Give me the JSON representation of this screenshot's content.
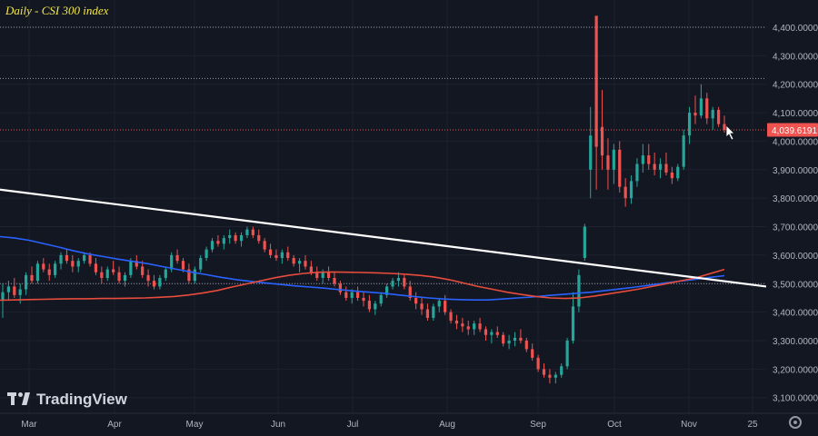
{
  "title": "Daily - CSI 300 index",
  "brand": "TradingView",
  "current_price_label": "4,039.6191",
  "colors": {
    "background": "#131722",
    "up": "#26a69a",
    "down": "#ef5350",
    "ma_fast": "#e74c3c",
    "ma_slow": "#2962ff",
    "trendline": "#ffffff",
    "title": "#f3e84a",
    "price_tag": "#ef5350"
  },
  "chart_data": {
    "type": "candlestick",
    "title": "Daily - CSI 300 index",
    "x_labels": [
      "Mar",
      "Apr",
      "May",
      "Jun",
      "Jul",
      "Aug",
      "Sep",
      "Oct",
      "Nov",
      "25"
    ],
    "y_ticks": [
      3100,
      3200,
      3300,
      3400,
      3500,
      3600,
      3700,
      3800,
      3900,
      4000,
      4100,
      4200,
      4300,
      4400
    ],
    "y_tick_labels": [
      "3,100.0000",
      "3,200.0000",
      "3,300.0000",
      "3,400.0000",
      "3,500.0000",
      "3,600.0000",
      "3,700.0000",
      "3,800.0000",
      "3,900.0000",
      "4,000.0000",
      "4,100.0000",
      "4,200.0000",
      "4,300.0000",
      "4,400.0000"
    ],
    "ylim": [
      3045,
      4470
    ],
    "last_price": 4039.6191,
    "horizontal_levels": [
      4400,
      4220,
      4039.6191,
      3500
    ],
    "candles": [
      [
        3440,
        3500,
        3380,
        3470
      ],
      [
        3470,
        3510,
        3440,
        3490
      ],
      [
        3490,
        3520,
        3450,
        3460
      ],
      [
        3460,
        3500,
        3430,
        3480
      ],
      [
        3480,
        3540,
        3460,
        3530
      ],
      [
        3530,
        3560,
        3500,
        3510
      ],
      [
        3510,
        3580,
        3500,
        3570
      ],
      [
        3570,
        3590,
        3540,
        3550
      ],
      [
        3550,
        3570,
        3510,
        3530
      ],
      [
        3530,
        3580,
        3520,
        3570
      ],
      [
        3570,
        3610,
        3550,
        3600
      ],
      [
        3600,
        3620,
        3570,
        3580
      ],
      [
        3580,
        3600,
        3540,
        3560
      ],
      [
        3560,
        3590,
        3540,
        3580
      ],
      [
        3580,
        3610,
        3570,
        3600
      ],
      [
        3600,
        3610,
        3560,
        3570
      ],
      [
        3570,
        3590,
        3530,
        3540
      ],
      [
        3540,
        3560,
        3500,
        3520
      ],
      [
        3520,
        3560,
        3510,
        3550
      ],
      [
        3550,
        3580,
        3530,
        3540
      ],
      [
        3540,
        3560,
        3500,
        3510
      ],
      [
        3510,
        3540,
        3490,
        3530
      ],
      [
        3530,
        3590,
        3520,
        3580
      ],
      [
        3580,
        3600,
        3550,
        3560
      ],
      [
        3560,
        3580,
        3520,
        3530
      ],
      [
        3530,
        3550,
        3490,
        3510
      ],
      [
        3510,
        3530,
        3480,
        3490
      ],
      [
        3490,
        3530,
        3480,
        3520
      ],
      [
        3520,
        3560,
        3510,
        3550
      ],
      [
        3550,
        3610,
        3540,
        3600
      ],
      [
        3600,
        3620,
        3570,
        3580
      ],
      [
        3580,
        3590,
        3540,
        3550
      ],
      [
        3550,
        3570,
        3500,
        3510
      ],
      [
        3510,
        3560,
        3500,
        3550
      ],
      [
        3550,
        3600,
        3540,
        3590
      ],
      [
        3590,
        3630,
        3580,
        3620
      ],
      [
        3620,
        3660,
        3610,
        3650
      ],
      [
        3650,
        3670,
        3630,
        3640
      ],
      [
        3640,
        3670,
        3620,
        3660
      ],
      [
        3660,
        3690,
        3640,
        3670
      ],
      [
        3670,
        3680,
        3640,
        3650
      ],
      [
        3650,
        3680,
        3630,
        3670
      ],
      [
        3670,
        3700,
        3660,
        3690
      ],
      [
        3690,
        3700,
        3660,
        3670
      ],
      [
        3670,
        3690,
        3640,
        3650
      ],
      [
        3650,
        3660,
        3610,
        3620
      ],
      [
        3620,
        3640,
        3590,
        3600
      ],
      [
        3600,
        3620,
        3580,
        3590
      ],
      [
        3590,
        3620,
        3570,
        3610
      ],
      [
        3610,
        3630,
        3580,
        3590
      ],
      [
        3590,
        3600,
        3560,
        3570
      ],
      [
        3570,
        3590,
        3540,
        3580
      ],
      [
        3580,
        3600,
        3550,
        3560
      ],
      [
        3560,
        3580,
        3530,
        3540
      ],
      [
        3540,
        3560,
        3510,
        3520
      ],
      [
        3520,
        3550,
        3500,
        3540
      ],
      [
        3540,
        3560,
        3510,
        3520
      ],
      [
        3520,
        3540,
        3490,
        3500
      ],
      [
        3500,
        3510,
        3460,
        3470
      ],
      [
        3470,
        3490,
        3440,
        3450
      ],
      [
        3450,
        3480,
        3430,
        3470
      ],
      [
        3470,
        3490,
        3440,
        3450
      ],
      [
        3450,
        3470,
        3420,
        3440
      ],
      [
        3440,
        3460,
        3400,
        3410
      ],
      [
        3410,
        3440,
        3390,
        3430
      ],
      [
        3430,
        3470,
        3420,
        3460
      ],
      [
        3460,
        3500,
        3450,
        3490
      ],
      [
        3490,
        3520,
        3480,
        3510
      ],
      [
        3510,
        3540,
        3490,
        3520
      ],
      [
        3520,
        3530,
        3480,
        3490
      ],
      [
        3490,
        3510,
        3440,
        3450
      ],
      [
        3450,
        3470,
        3410,
        3430
      ],
      [
        3430,
        3450,
        3390,
        3410
      ],
      [
        3410,
        3430,
        3370,
        3380
      ],
      [
        3380,
        3430,
        3370,
        3420
      ],
      [
        3420,
        3450,
        3400,
        3440
      ],
      [
        3440,
        3460,
        3390,
        3400
      ],
      [
        3400,
        3410,
        3360,
        3370
      ],
      [
        3370,
        3390,
        3340,
        3360
      ],
      [
        3360,
        3380,
        3330,
        3350
      ],
      [
        3350,
        3370,
        3320,
        3340
      ],
      [
        3340,
        3370,
        3320,
        3360
      ],
      [
        3360,
        3380,
        3330,
        3340
      ],
      [
        3340,
        3350,
        3300,
        3320
      ],
      [
        3320,
        3340,
        3290,
        3330
      ],
      [
        3330,
        3350,
        3310,
        3320
      ],
      [
        3320,
        3330,
        3280,
        3290
      ],
      [
        3290,
        3320,
        3270,
        3300
      ],
      [
        3300,
        3330,
        3280,
        3310
      ],
      [
        3310,
        3340,
        3290,
        3300
      ],
      [
        3300,
        3310,
        3260,
        3270
      ],
      [
        3270,
        3290,
        3230,
        3240
      ],
      [
        3240,
        3250,
        3190,
        3200
      ],
      [
        3200,
        3220,
        3170,
        3180
      ],
      [
        3180,
        3200,
        3150,
        3170
      ],
      [
        3170,
        3190,
        3150,
        3180
      ],
      [
        3180,
        3220,
        3170,
        3210
      ],
      [
        3210,
        3310,
        3200,
        3300
      ],
      [
        3300,
        3470,
        3290,
        3420
      ],
      [
        3420,
        3550,
        3400,
        3530
      ],
      [
        3590,
        3710,
        3580,
        3700
      ],
      [
        3900,
        4120,
        3800,
        4020
      ],
      [
        4440,
        4440,
        3830,
        3980
      ],
      [
        4050,
        4180,
        3900,
        3950
      ],
      [
        3950,
        4010,
        3830,
        3900
      ],
      [
        3900,
        3990,
        3850,
        3970
      ],
      [
        3970,
        4000,
        3820,
        3840
      ],
      [
        3840,
        3870,
        3770,
        3800
      ],
      [
        3800,
        3880,
        3780,
        3860
      ],
      [
        3860,
        3940,
        3840,
        3920
      ],
      [
        3920,
        3990,
        3890,
        3950
      ],
      [
        3950,
        3990,
        3900,
        3920
      ],
      [
        3920,
        3960,
        3880,
        3900
      ],
      [
        3900,
        3940,
        3870,
        3920
      ],
      [
        3920,
        3960,
        3880,
        3890
      ],
      [
        3890,
        3910,
        3850,
        3870
      ],
      [
        3870,
        3920,
        3860,
        3910
      ],
      [
        3910,
        4040,
        3900,
        4020
      ],
      [
        4020,
        4120,
        3990,
        4100
      ],
      [
        4100,
        4160,
        4060,
        4090
      ],
      [
        4090,
        4200,
        4080,
        4150
      ],
      [
        4150,
        4170,
        4060,
        4080
      ],
      [
        4080,
        4120,
        4040,
        4110
      ],
      [
        4110,
        4120,
        4050,
        4060
      ],
      [
        4060,
        4090,
        4030,
        4039.6191
      ]
    ],
    "candle_ranges": [
      {
        "from": 0,
        "to": 35,
        "label": "Mar"
      },
      {
        "from": 36,
        "to": 83,
        "label": "Apr"
      }
    ],
    "series": [
      {
        "kind": "ma_slow",
        "values": [
          3665,
          3660,
          3652,
          3640,
          3628,
          3615,
          3604,
          3595,
          3586,
          3578,
          3570,
          3560,
          3550,
          3540,
          3531,
          3522,
          3514,
          3508,
          3502,
          3497,
          3492,
          3488,
          3484,
          3479,
          3474,
          3470,
          3466,
          3460,
          3455,
          3450,
          3446,
          3444,
          3443,
          3443,
          3446,
          3450,
          3453,
          3458,
          3462,
          3466,
          3470,
          3476,
          3482,
          3488,
          3495,
          3502,
          3509,
          3515,
          3522,
          3528
        ]
      },
      {
        "kind": "ma_fast",
        "values": [
          3442,
          3443,
          3444,
          3445,
          3446,
          3447,
          3447,
          3448,
          3448,
          3449,
          3450,
          3452,
          3455,
          3460,
          3467,
          3476,
          3488,
          3499,
          3510,
          3521,
          3530,
          3536,
          3540,
          3541,
          3540,
          3539,
          3538,
          3536,
          3533,
          3529,
          3523,
          3514,
          3502,
          3490,
          3480,
          3470,
          3462,
          3455,
          3450,
          3448,
          3450,
          3456,
          3464,
          3472,
          3480,
          3490,
          3500,
          3510,
          3520,
          3535,
          3550
        ]
      },
      {
        "kind": "trendline",
        "start": 3830,
        "end": 3490
      }
    ]
  }
}
